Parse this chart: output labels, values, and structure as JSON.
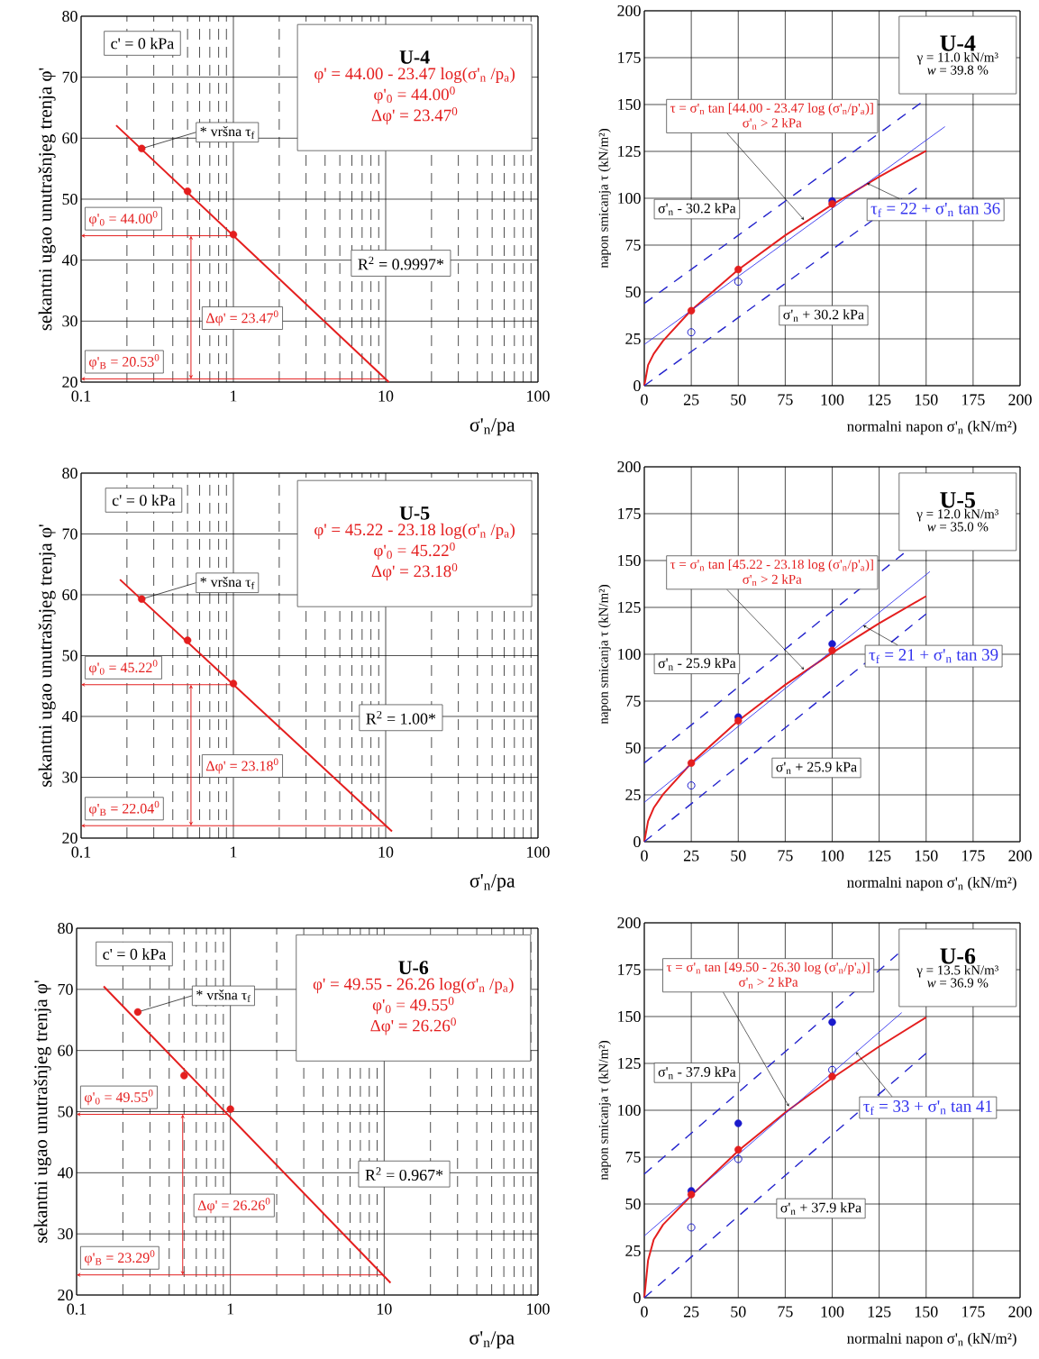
{
  "chart_data": [
    {
      "type": "line",
      "title": "U-4",
      "xlabel": "σ'$_{n}$/pa",
      "ylabel": "sekantni ugao unutrašnjeg trenja  φ'",
      "log": "x",
      "grid": true,
      "xlim": [
        0.1,
        100
      ],
      "xticks": [
        0.1,
        1,
        10,
        100
      ],
      "ylim": [
        20,
        80
      ],
      "yticks": [
        20,
        30,
        40,
        50,
        60,
        70,
        80
      ],
      "series": [
        {
          "color": "#e41e1e",
          "x": [
            0.17,
            10.5
          ],
          "values": [
            62.1,
            20.0
          ]
        },
        {
          "type": "scatter",
          "marker": "circle",
          "color": "#e41e1e",
          "x": [
            0.25,
            0.5,
            1
          ],
          "values": [
            58.3,
            51.3,
            44.2
          ]
        }
      ],
      "ref_lines": [
        {
          "axis": "y",
          "value": 44.0,
          "label": "φ'$_{0}$ = 44.00$^{0}$",
          "color": "#e41e1e"
        },
        {
          "axis": "y",
          "value": 20.53,
          "label": "φ'$_{B}$ = 20.53$^{0}$",
          "color": "#e41e1e"
        }
      ],
      "annotations": [
        "c' = 0 kPa",
        "φ' = 44.00 - 23.47 log(σ'$_{n}$ /p$_{a}$)",
        "φ'$_{0}$ = 44.00$^{0}$",
        "Δφ' = 23.47$^{0}$",
        {
          "text": "* vršna  τ$_{f}$",
          "x": 0.25,
          "y": 58.3
        },
        "R$^{2}$ = 0.9997*",
        "Δφ' = 23.47$^{0}$"
      ]
    },
    {
      "type": "line",
      "title": "U-4",
      "xlabel": "normalni napon  σ'$_{n}$  (kN/m²)",
      "ylabel": "napon smicanja  τ  (kN/m²)",
      "grid": true,
      "xlim": [
        0,
        200
      ],
      "xticks": [
        0,
        25,
        50,
        75,
        100,
        125,
        150,
        175,
        200
      ],
      "ylim": [
        0,
        200
      ],
      "yticks": [
        0,
        25,
        50,
        75,
        100,
        125,
        150,
        175,
        200
      ],
      "series": [
        {
          "color": "#e41e1e",
          "x": [
            0,
            2,
            5,
            10,
            25,
            50,
            75,
            100,
            125,
            150
          ],
          "values": [
            0,
            11,
            17,
            24,
            40.3,
            61.9,
            80.2,
            96.6,
            111.5,
            125.3
          ]
        },
        {
          "name": "τ$_{f}$ = 22 + σ'$_{n}$ tan 36",
          "color": "#3333ee",
          "x": [
            0,
            160
          ],
          "values": [
            22,
            138.2
          ]
        },
        {
          "name": "σ'$_{n}$ - 30.2 kPa",
          "line_style": "dashed",
          "color": "#2222cc",
          "x": [
            0,
            147
          ],
          "values": [
            43.9,
            150.7
          ]
        },
        {
          "name": "σ'$_{n}$ + 30.2 kPa",
          "line_style": "dashed",
          "color": "#2222cc",
          "x": [
            0,
            145
          ],
          "values": [
            0,
            105.4
          ]
        },
        {
          "type": "scatter",
          "marker": "circle",
          "color": "#1a1acc",
          "x": [
            100
          ],
          "values": [
            98.5
          ]
        },
        {
          "type": "scatter",
          "marker": "circle",
          "color": "#1a1acc",
          "x": [
            25,
            50
          ],
          "values": [
            28.5,
            55.5
          ]
        },
        {
          "type": "scatter",
          "marker": "circle",
          "color": "#e41e1e",
          "x": [
            25,
            50,
            100
          ],
          "values": [
            40,
            62,
            97
          ]
        }
      ],
      "annotations": [
        "γ = 11.0 kN/m³",
        "*w* = 39.8 %",
        "τ = σ'$_{n}$ tan [44.00 - 23.47 log (σ'$_{n}$/p'$_{a}$)]",
        {
          "text": "σ'$_{n}$ > 2 kPa",
          "x": 85,
          "y": 88.5
        }
      ]
    },
    {
      "type": "line",
      "title": "U-5",
      "xlabel": "σ'$_{n}$/pa",
      "ylabel": "sekantni ugao unutrašnjeg trenja  φ'",
      "log": "x",
      "grid": true,
      "xlim": [
        0.1,
        100
      ],
      "xticks": [
        0.1,
        1,
        10,
        100
      ],
      "ylim": [
        20,
        80
      ],
      "yticks": [
        20,
        30,
        40,
        50,
        60,
        70,
        80
      ],
      "series": [
        {
          "color": "#e41e1e",
          "x": [
            0.18,
            11
          ],
          "values": [
            62.5,
            21.1
          ]
        },
        {
          "type": "scatter",
          "marker": "circle",
          "color": "#e41e1e",
          "x": [
            0.25,
            0.5,
            1
          ],
          "values": [
            59.3,
            52.5,
            45.4
          ]
        }
      ],
      "ref_lines": [
        {
          "axis": "y",
          "value": 45.22,
          "label": "φ'$_{0}$ = 45.22$^{0}$",
          "color": "#e41e1e"
        },
        {
          "axis": "y",
          "value": 22.04,
          "label": "φ'$_{B}$ = 22.04$^{0}$",
          "color": "#e41e1e"
        }
      ],
      "annotations": [
        "c' = 0 kPa",
        "φ' = 45.22 - 23.18 log(σ'$_{n}$ /p$_{a}$)",
        "φ'$_{0}$ = 45.22$^{0}$",
        "Δφ' = 23.18$^{0}$",
        {
          "text": "* vršna  τ$_{f}$",
          "x": 0.25,
          "y": 59.3
        },
        "R$^{2}$ = 1.00*",
        "Δφ' = 23.18$^{0}$"
      ]
    },
    {
      "type": "line",
      "title": "U-5",
      "xlabel": "normalni napon  σ'$_{n}$  (kN/m²)",
      "ylabel": "napon smicanja  τ  (kN/m²)",
      "grid": true,
      "xlim": [
        0,
        200
      ],
      "xticks": [
        0,
        25,
        50,
        75,
        100,
        125,
        150,
        175,
        200
      ],
      "ylim": [
        0,
        200
      ],
      "yticks": [
        0,
        25,
        50,
        75,
        100,
        125,
        150,
        175,
        200
      ],
      "series": [
        {
          "color": "#e41e1e",
          "x": [
            0,
            2,
            5,
            10,
            25,
            50,
            75,
            100,
            125,
            150
          ],
          "values": [
            0,
            11,
            18,
            25.3,
            41.9,
            64.5,
            83.7,
            100.8,
            116.5,
            131.0
          ]
        },
        {
          "name": "τ$_{f}$ = 21 + σ'$_{n}$ tan 39",
          "color": "#3333ee",
          "x": [
            0,
            152
          ],
          "values": [
            21,
            144.1
          ]
        },
        {
          "name": "σ'$_{n}$ - 25.9 kPa",
          "line_style": "dashed",
          "color": "#2222cc",
          "x": [
            0,
            138
          ],
          "values": [
            42,
            153.8
          ]
        },
        {
          "name": "σ'$_{n}$ + 25.9 kPa",
          "line_style": "dashed",
          "color": "#2222cc",
          "x": [
            0,
            150
          ],
          "values": [
            0,
            121.5
          ]
        },
        {
          "type": "scatter",
          "marker": "circle",
          "color": "#1a1acc",
          "x": [
            50,
            100
          ],
          "values": [
            66.5,
            105.5
          ]
        },
        {
          "type": "scatter",
          "marker": "circle",
          "color": "#1a1acc",
          "x": [
            25
          ],
          "values": [
            30
          ]
        },
        {
          "type": "scatter",
          "marker": "circle",
          "color": "#e41e1e",
          "x": [
            25,
            50,
            100
          ],
          "values": [
            42,
            64.5,
            102
          ]
        }
      ],
      "annotations": [
        "γ = 12.0 kN/m³",
        "*w* = 35.0 %",
        "τ = σ'$_{n}$ tan [45.22 - 23.18 log (σ'$_{n}$/p'$_{a}$)]",
        {
          "text": "σ'$_{n}$ > 2 kPa",
          "x": 85,
          "y": 91.8
        }
      ]
    },
    {
      "type": "line",
      "title": "U-6",
      "xlabel": "σ'$_{n}$/pa",
      "ylabel": "sekantni ugao unutrašnjeg trenja  φ'",
      "log": "x",
      "grid": true,
      "xlim": [
        0.1,
        100
      ],
      "xticks": [
        0.1,
        1,
        10,
        100
      ],
      "ylim": [
        20,
        80
      ],
      "yticks": [
        20,
        30,
        40,
        50,
        60,
        70,
        80
      ],
      "series": [
        {
          "color": "#e41e1e",
          "x": [
            0.15,
            11
          ],
          "values": [
            70.5,
            22.0
          ]
        },
        {
          "type": "scatter",
          "marker": "circle",
          "color": "#e41e1e",
          "x": [
            0.25,
            0.5,
            1
          ],
          "values": [
            66.3,
            55.9,
            50.4
          ]
        }
      ],
      "ref_lines": [
        {
          "axis": "y",
          "value": 49.55,
          "label": "φ'$_{0}$ = 49.55$^{0}$",
          "color": "#e41e1e"
        },
        {
          "axis": "y",
          "value": 23.29,
          "label": "φ'$_{B}$ = 23.29$^{0}$",
          "color": "#e41e1e"
        }
      ],
      "annotations": [
        "c' = 0 kPa",
        "φ' = 49.55 - 26.26 log(σ'$_{n}$ /p$_{a}$)",
        "φ'$_{0}$ = 49.55$^{0}$",
        "Δφ' = 26.26$^{0}$",
        {
          "text": "* vršna  τ$_{f}$",
          "x": 0.25,
          "y": 66.3
        },
        "R$^{2}$ = 0.967*",
        "Δφ' = 26.26$^{0}$"
      ]
    },
    {
      "type": "line",
      "title": "U-6",
      "xlabel": "normalni napon  σ'$_{n}$  (kN/m²)",
      "ylabel": "napon smicanja  τ  (kN/m²)",
      "grid": true,
      "xlim": [
        0,
        200
      ],
      "xticks": [
        0,
        25,
        50,
        75,
        100,
        125,
        150,
        175,
        200
      ],
      "ylim": [
        0,
        200
      ],
      "yticks": [
        0,
        25,
        50,
        75,
        100,
        125,
        150,
        175,
        200
      ],
      "series": [
        {
          "color": "#e41e1e",
          "x": [
            0,
            2,
            5,
            10,
            25,
            50,
            75,
            100,
            125,
            150
          ],
          "values": [
            0,
            20,
            31,
            39,
            54.5,
            78.4,
            98.8,
            117.2,
            134.0,
            149.6
          ]
        },
        {
          "name": "τ$_{f}$ = 33 + σ'$_{n}$ tan 41",
          "color": "#3333ee",
          "x": [
            0,
            137
          ],
          "values": [
            33,
            152.1
          ]
        },
        {
          "name": "σ'$_{n}$ - 37.9 kPa",
          "line_style": "dashed",
          "color": "#2222cc",
          "x": [
            0,
            135
          ],
          "values": [
            66,
            183.4
          ]
        },
        {
          "name": "σ'$_{n}$ + 37.9 kPa",
          "line_style": "dashed",
          "color": "#2222cc",
          "x": [
            0,
            150
          ],
          "values": [
            0,
            130.4
          ]
        },
        {
          "type": "scatter",
          "marker": "circle",
          "color": "#1a1acc",
          "x": [
            25,
            50,
            100
          ],
          "values": [
            57,
            93,
            147
          ]
        },
        {
          "type": "scatter",
          "marker": "circle",
          "color": "#1a1acc",
          "x": [
            25,
            50,
            100
          ],
          "values": [
            37.5,
            74,
            121.5
          ]
        },
        {
          "type": "scatter",
          "marker": "circle",
          "color": "#e41e1e",
          "x": [
            25,
            50,
            100
          ],
          "values": [
            55,
            79,
            118
          ]
        }
      ],
      "annotations": [
        "γ = 13.5 kN/m³",
        "*w* = 36.9 %",
        "τ = σ'$_{n}$ tan [49.50 - 26.30 log (σ'$_{n}$/p'$_{a}$)]",
        {
          "text": "σ'$_{n}$ > 2 kPa",
          "x": 77,
          "y": 102
        }
      ]
    }
  ]
}
